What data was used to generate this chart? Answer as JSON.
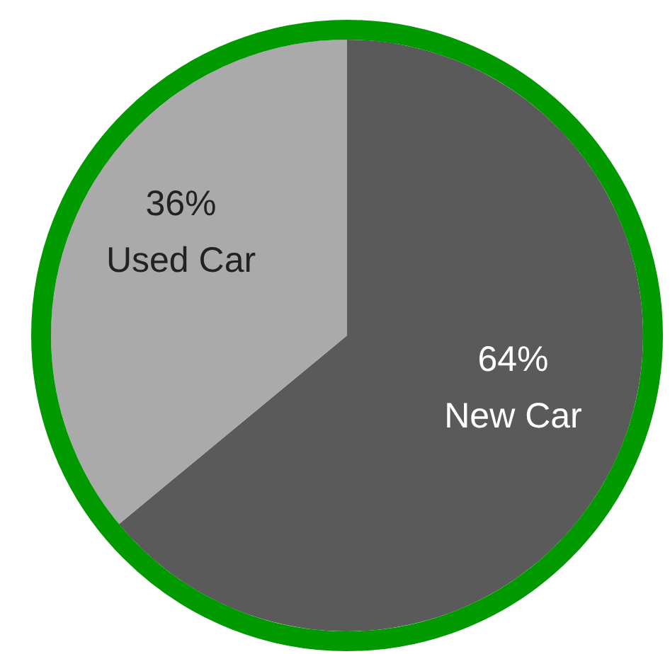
{
  "chart_data": {
    "type": "pie",
    "categories": [
      "New Car",
      "Used Car"
    ],
    "values": [
      64,
      36
    ],
    "colors": [
      "#5a5a5a",
      "#aaaaaa"
    ],
    "value_labels": [
      "64%",
      "36%"
    ]
  }
}
